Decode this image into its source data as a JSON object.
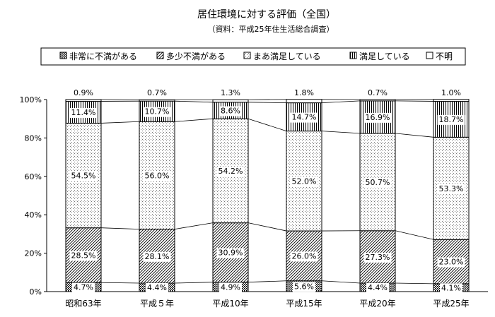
{
  "chart_data": {
    "type": "bar",
    "stacked": true,
    "title": "居住環境に対する評価（全国）",
    "subtitle": "（資料：平成25年住生活総合調査）",
    "categories": [
      "昭和63年",
      "平成５年",
      "平成10年",
      "平成15年",
      "平成20年",
      "平成25年"
    ],
    "y_ticks": [
      "0%",
      "20%",
      "40%",
      "60%",
      "80%",
      "100%"
    ],
    "ylim": [
      0,
      100
    ],
    "grid": false,
    "legend_position": "top",
    "series": [
      {
        "name": "非常に不満がある",
        "values": [
          4.7,
          4.4,
          4.9,
          5.6,
          4.4,
          4.1
        ],
        "labels": [
          "4.7%",
          "4.4%",
          "4.9%",
          "5.6%",
          "4.4%",
          "4.1%"
        ]
      },
      {
        "name": "多少不満がある",
        "values": [
          28.5,
          28.1,
          30.9,
          26.0,
          27.3,
          23.0
        ],
        "labels": [
          "28.5%",
          "28.1%",
          "30.9%",
          "26.0%",
          "27.3%",
          "23.0%"
        ]
      },
      {
        "name": "まあ満足している",
        "values": [
          54.5,
          56.0,
          54.2,
          52.0,
          50.7,
          53.3
        ],
        "labels": [
          "54.5%",
          "56.0%",
          "54.2%",
          "52.0%",
          "50.7%",
          "53.3%"
        ]
      },
      {
        "name": "満足している",
        "values": [
          11.4,
          10.7,
          8.6,
          14.7,
          16.9,
          18.7
        ],
        "labels": [
          "11.4%",
          "10.7%",
          "8.6%",
          "14.7%",
          "16.9%",
          "18.7%"
        ]
      },
      {
        "name": "不明",
        "values": [
          0.9,
          0.7,
          1.3,
          1.8,
          0.7,
          1.0
        ],
        "labels": [
          "0.9%",
          "0.7%",
          "1.3%",
          "1.8%",
          "0.7%",
          "1.0%"
        ]
      }
    ]
  }
}
